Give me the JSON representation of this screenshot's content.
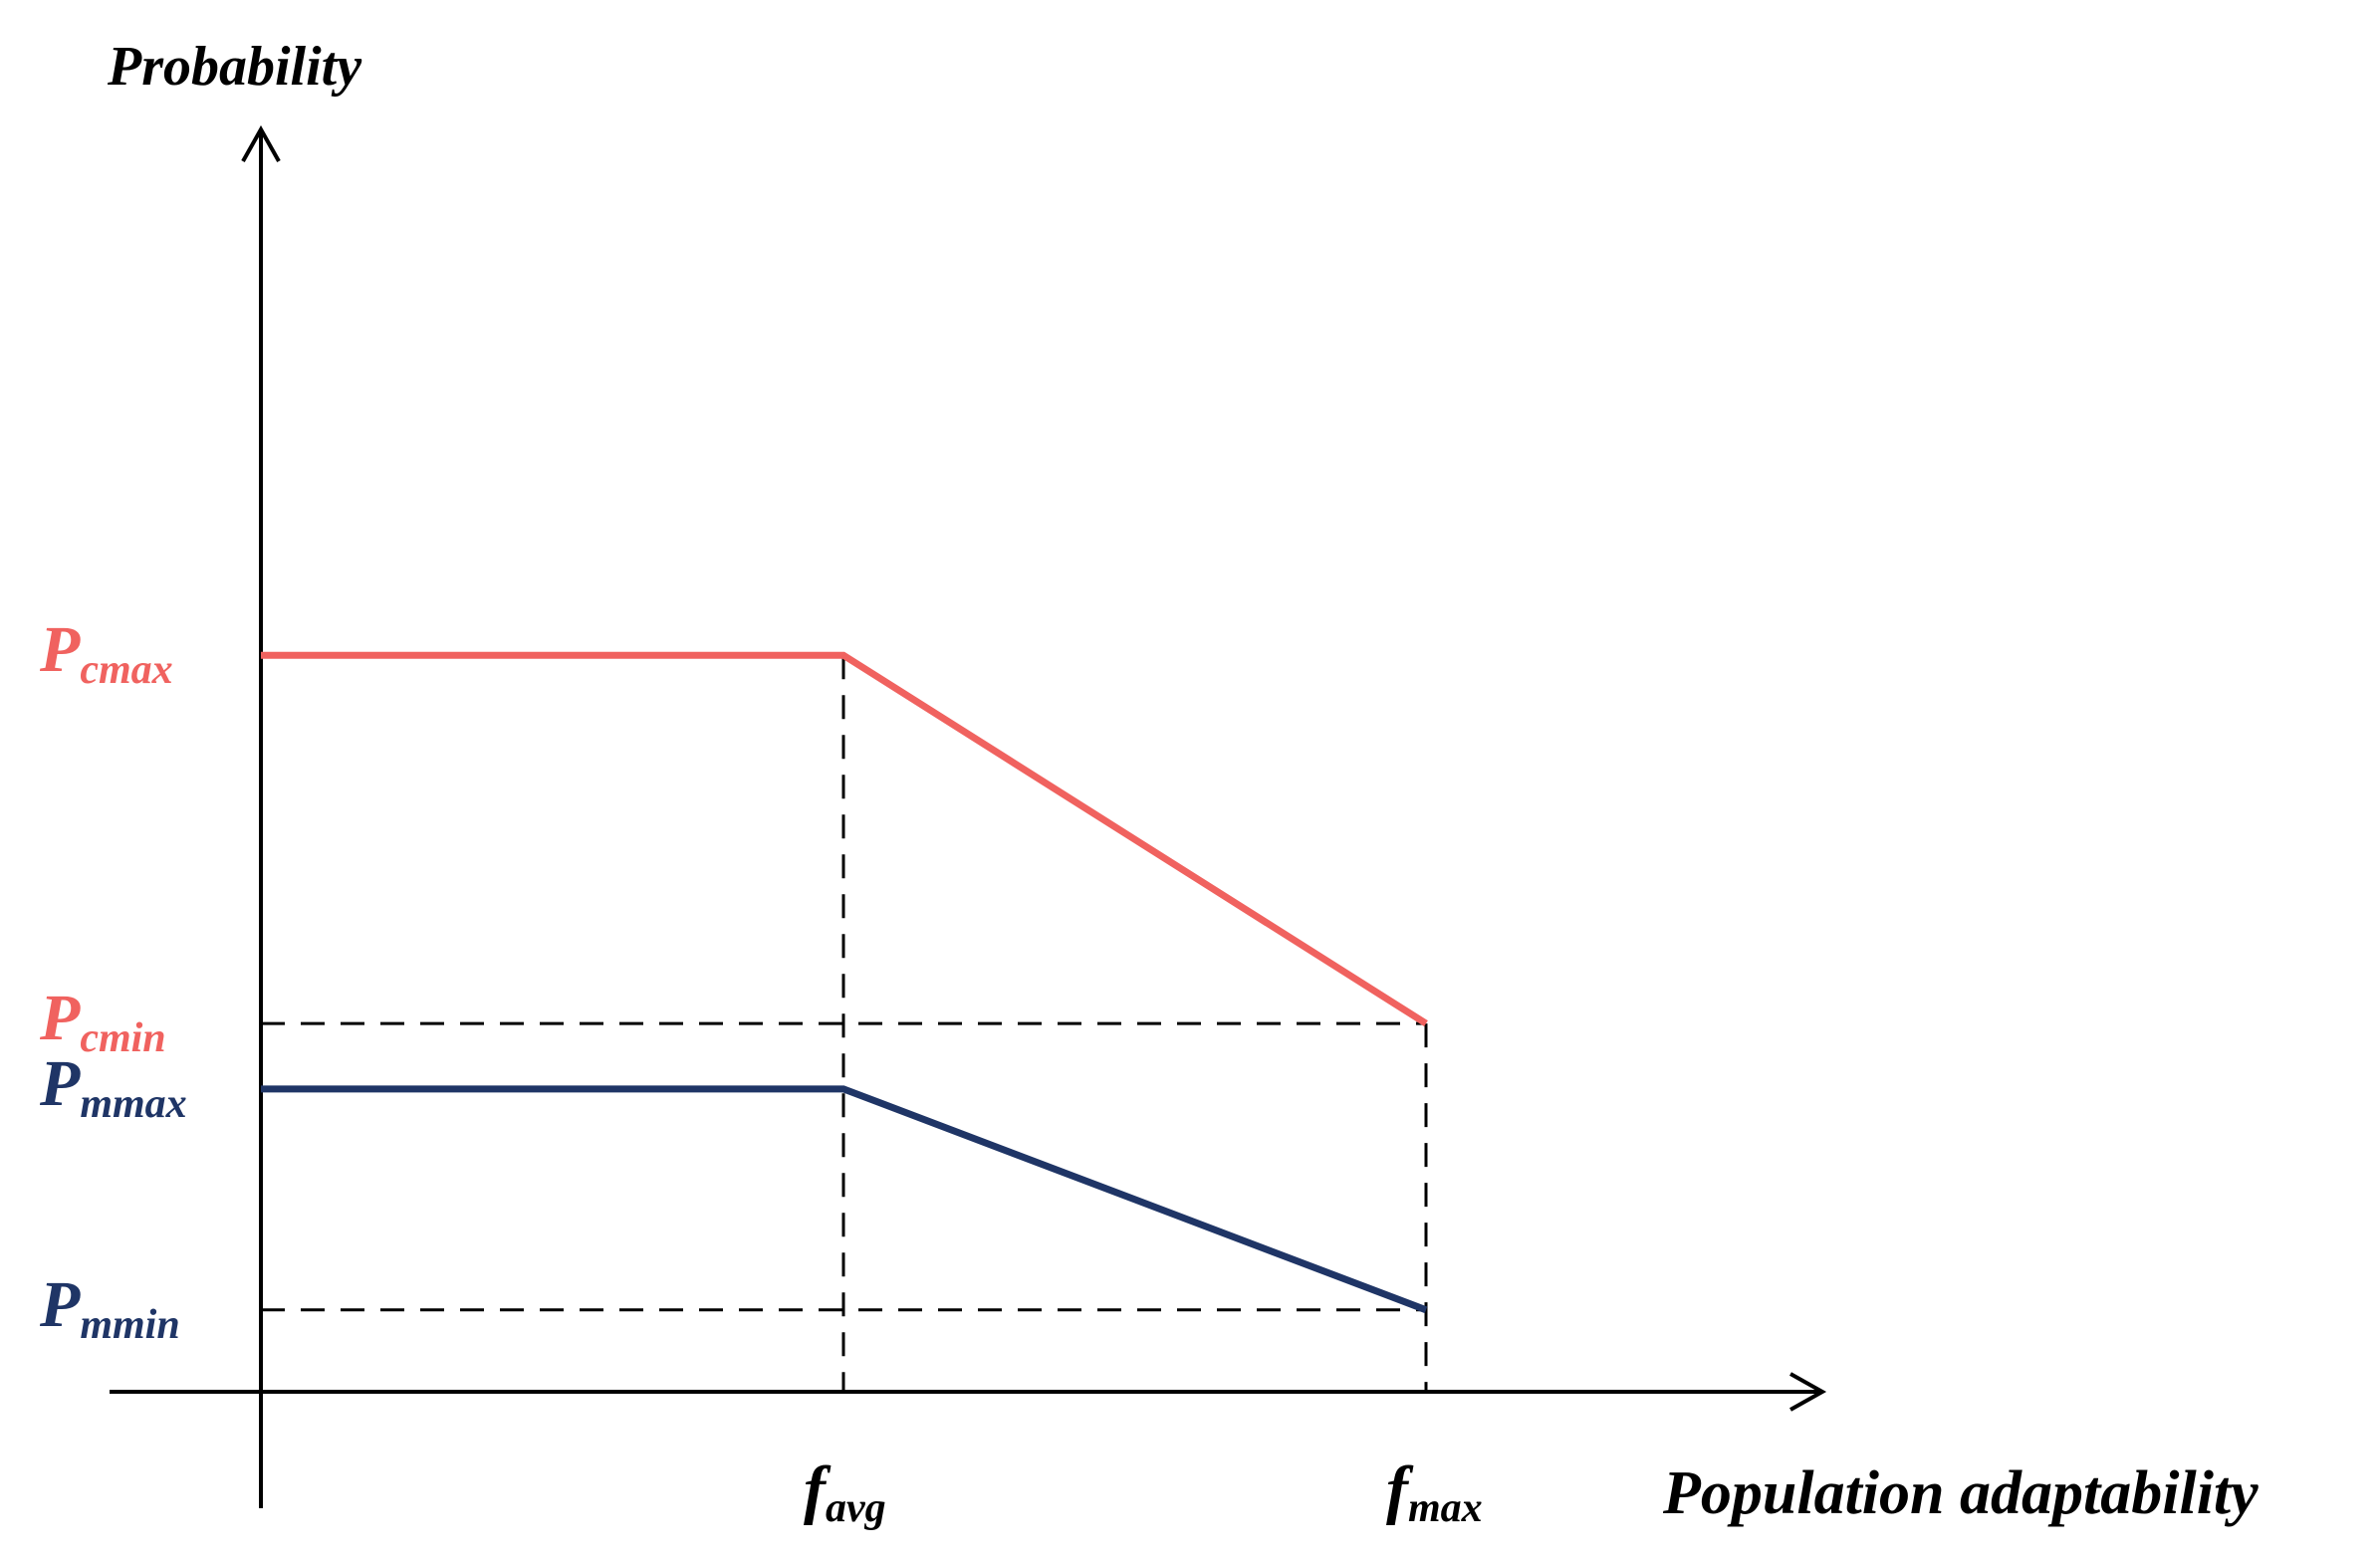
{
  "chart_data": {
    "type": "line",
    "ylabel": "Probability",
    "xlabel": "Population adaptability",
    "x_ticks": [
      {
        "value": 1,
        "main": "f",
        "sub": "avg"
      },
      {
        "value": 2,
        "main": "f",
        "sub": "max"
      }
    ],
    "y_ticks": [
      {
        "key": "pcmax",
        "value": 0.9,
        "main": "P",
        "sub": "cmax",
        "color": "#f0625f"
      },
      {
        "key": "pcmin",
        "value": 0.45,
        "main": "P",
        "sub": "cmin",
        "color": "#f0625f"
      },
      {
        "key": "pmmax",
        "value": 0.37,
        "main": "P",
        "sub": "mmax",
        "color": "#1f3566"
      },
      {
        "key": "pmmin",
        "value": 0.1,
        "main": "P",
        "sub": "mmin",
        "color": "#1f3566"
      }
    ],
    "xlim": [
      0,
      2
    ],
    "ylim": [
      0,
      1.3
    ],
    "grid": false,
    "series": [
      {
        "key": "crossover",
        "color": "#f0625f",
        "x": [
          0,
          1,
          2
        ],
        "y": [
          0.9,
          0.9,
          0.45
        ]
      },
      {
        "key": "mutation",
        "color": "#1f3566",
        "x": [
          0,
          1,
          2
        ],
        "y": [
          0.37,
          0.37,
          0.1
        ]
      }
    ]
  }
}
